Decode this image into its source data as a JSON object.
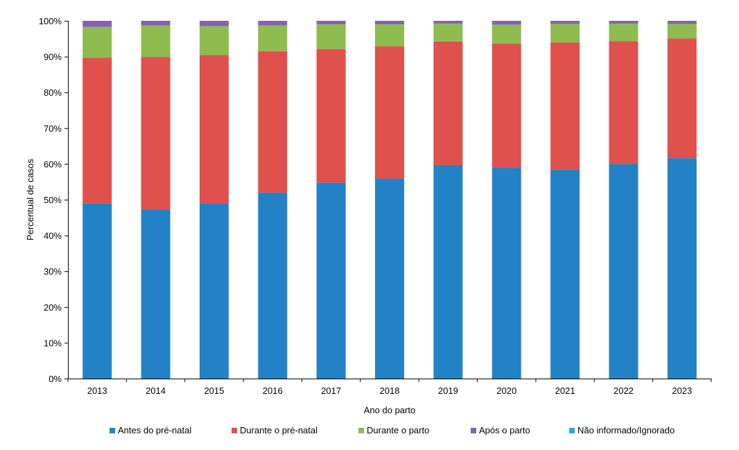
{
  "chart_data": {
    "type": "bar",
    "stacked": true,
    "categories": [
      "2013",
      "2014",
      "2015",
      "2016",
      "2017",
      "2018",
      "2019",
      "2020",
      "2021",
      "2022",
      "2023"
    ],
    "series": [
      {
        "name": "Antes do pré-natal",
        "color": "#2382c6",
        "values": [
          48.9,
          47.3,
          49.0,
          52.0,
          54.8,
          55.9,
          59.7,
          58.9,
          58.4,
          60.0,
          61.6
        ]
      },
      {
        "name": "Durante o pré-natal",
        "color": "#e0504d",
        "values": [
          40.8,
          42.6,
          41.4,
          39.5,
          37.3,
          37.0,
          34.5,
          34.7,
          35.5,
          34.3,
          33.5
        ]
      },
      {
        "name": "Durante o parto",
        "color": "#8fbc4f",
        "values": [
          8.6,
          8.8,
          8.1,
          7.2,
          6.9,
          6.1,
          5.0,
          5.3,
          5.2,
          4.9,
          4.0
        ]
      },
      {
        "name": "Após o parto",
        "color": "#8464a6",
        "values": [
          1.7,
          1.3,
          1.5,
          1.3,
          1.0,
          1.0,
          0.8,
          1.1,
          0.9,
          0.8,
          0.9
        ]
      },
      {
        "name": "Não informado/Ignorado",
        "color": "#1fb0cf",
        "values": [
          0,
          0,
          0,
          0,
          0,
          0,
          0,
          0,
          0,
          0,
          0
        ]
      }
    ],
    "xlabel": "Ano do parto",
    "ylabel": "Percentual de casos",
    "ylim": [
      0,
      100
    ],
    "yticks": [
      "0%",
      "10%",
      "20%",
      "30%",
      "40%",
      "50%",
      "60%",
      "70%",
      "80%",
      "90%",
      "100%"
    ],
    "legend_position": "bottom",
    "grid": false
  }
}
